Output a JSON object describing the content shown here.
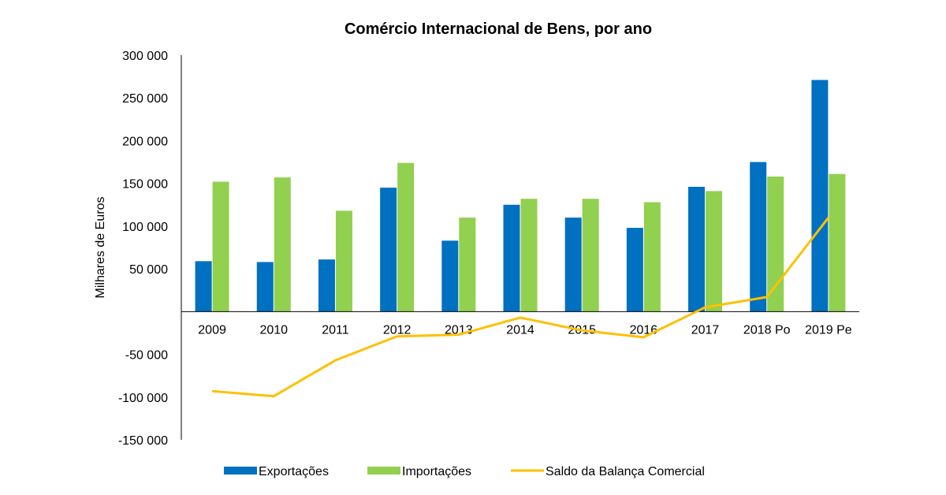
{
  "chart_data": {
    "type": "bar",
    "title": "Comércio Internacional de Bens, por ano",
    "ylabel": "Milhares de Euros",
    "xlabel": "",
    "categories": [
      "2009",
      "2010",
      "2011",
      "2012",
      "2013",
      "2014",
      "2015",
      "2016",
      "2017",
      "2018 Po",
      "2019 Pe"
    ],
    "ylim": [
      -150000,
      300000
    ],
    "yticks": [
      300000,
      250000,
      200000,
      150000,
      100000,
      50000,
      -50000,
      -100000,
      -150000
    ],
    "ytick_labels": [
      "300 000",
      "250 000",
      "200 000",
      "150 000",
      "100 000",
      "50 000",
      "-50 000",
      "-100 000",
      "-150 000"
    ],
    "grid": false,
    "legend_position": "bottom",
    "series": [
      {
        "name": "Exportações",
        "type": "bar",
        "color": "#0070C0",
        "values": [
          59000,
          58000,
          61000,
          145000,
          83000,
          125000,
          110000,
          98000,
          146000,
          175000,
          271000
        ]
      },
      {
        "name": "Importações",
        "type": "bar",
        "color": "#92D050",
        "values": [
          152000,
          157000,
          118000,
          174000,
          110000,
          132000,
          132000,
          128000,
          141000,
          158000,
          161000
        ]
      },
      {
        "name": "Saldo da Balança Comercial",
        "type": "line",
        "color": "#FFC000",
        "values": [
          -93000,
          -99000,
          -57000,
          -29000,
          -27000,
          -7000,
          -22000,
          -30000,
          5000,
          17000,
          110000
        ]
      }
    ]
  }
}
